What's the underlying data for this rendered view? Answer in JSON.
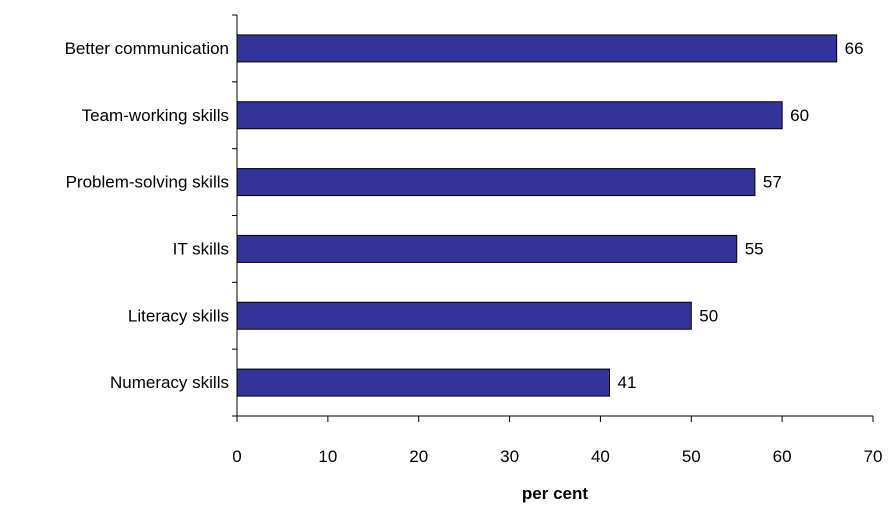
{
  "chart_data": {
    "type": "bar",
    "orientation": "horizontal",
    "categories": [
      "Better communication",
      "Team-working skills",
      "Problem-solving skills",
      "IT skills",
      "Literacy skills",
      "Numeracy skills"
    ],
    "values": [
      66,
      60,
      57,
      55,
      50,
      41
    ],
    "xlabel": "per cent",
    "ylabel": "",
    "xlim": [
      0,
      70
    ],
    "x_ticks": [
      "0",
      "10",
      "20",
      "30",
      "40",
      "50",
      "60",
      "70"
    ],
    "grid": false,
    "legend": "none",
    "colors": {
      "bar_fill": "#333399",
      "bar_stroke": "#000000",
      "axis": "#000000"
    }
  }
}
